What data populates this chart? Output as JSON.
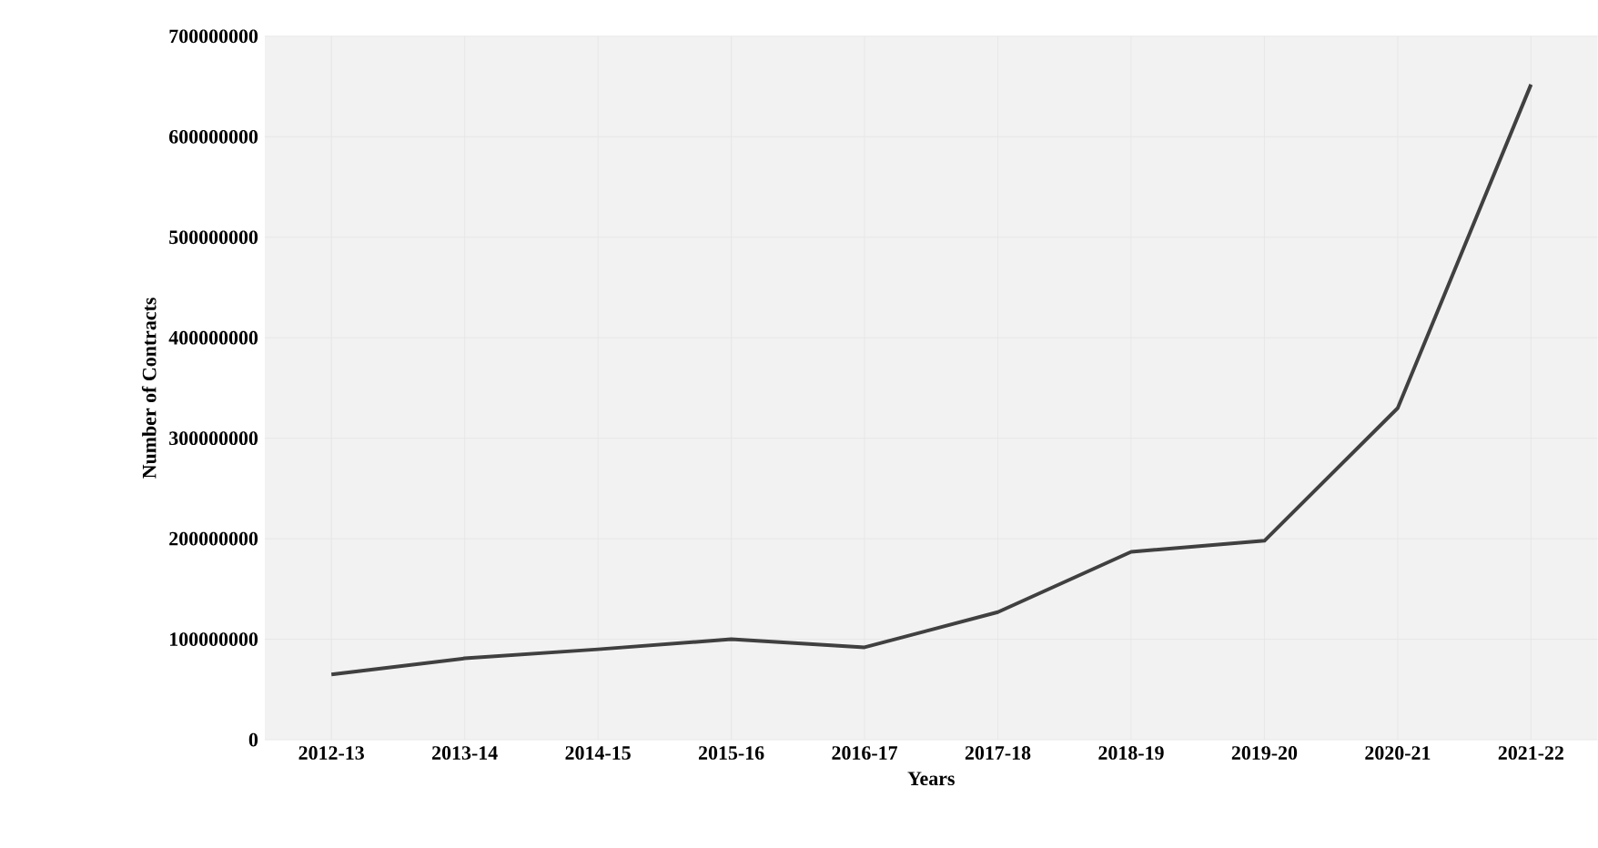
{
  "chart_data": {
    "type": "line",
    "xlabel": "Years",
    "ylabel": "Number of Contracts",
    "categories": [
      "2012-13",
      "2013-14",
      "2014-15",
      "2015-16",
      "2016-17",
      "2017-18",
      "2018-19",
      "2019-20",
      "2020-21",
      "2021-22"
    ],
    "series": [
      {
        "color": "#404040",
        "values": [
          65000000,
          81000000,
          90000000,
          100000000,
          92000000,
          127000000,
          187000000,
          198000000,
          330000000,
          652000000
        ]
      }
    ],
    "ylim": [
      0,
      700000000
    ],
    "yticks": [
      0,
      100000000,
      200000000,
      300000000,
      400000000,
      500000000,
      600000000,
      700000000
    ],
    "grid": true,
    "marker": "none",
    "line_style": "solid"
  }
}
